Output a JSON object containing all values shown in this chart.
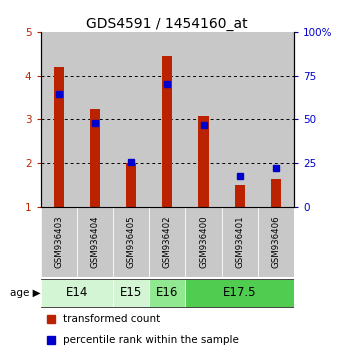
{
  "title": "GDS4591 / 1454160_at",
  "samples": [
    "GSM936403",
    "GSM936404",
    "GSM936405",
    "GSM936402",
    "GSM936400",
    "GSM936401",
    "GSM936406"
  ],
  "red_values": [
    4.2,
    3.25,
    2.0,
    4.45,
    3.07,
    1.5,
    1.65
  ],
  "blue_values": [
    3.58,
    2.93,
    2.02,
    3.82,
    2.87,
    1.72,
    1.9
  ],
  "ylim_left": [
    1,
    5
  ],
  "ylim_right": [
    0,
    100
  ],
  "yticks_left": [
    1,
    2,
    3,
    4,
    5
  ],
  "yticks_right": [
    0,
    25,
    50,
    75,
    100
  ],
  "ytick_labels_right": [
    "0",
    "25",
    "50",
    "75",
    "100%"
  ],
  "hgrid_at": [
    2,
    3,
    4
  ],
  "age_groups": [
    {
      "label": "E14",
      "span": [
        0,
        1
      ],
      "color": "#d4f5d4"
    },
    {
      "label": "E15",
      "span": [
        2,
        2
      ],
      "color": "#d4f5d4"
    },
    {
      "label": "E16",
      "span": [
        3,
        3
      ],
      "color": "#90e890"
    },
    {
      "label": "E17.5",
      "span": [
        4,
        6
      ],
      "color": "#50cc50"
    }
  ],
  "bar_color": "#bb2200",
  "marker_color": "#0000cc",
  "bg_color": "#c8c8c8",
  "bar_bottom": 1.0,
  "title_fontsize": 10,
  "tick_fontsize": 7.5,
  "sample_fontsize": 6.2,
  "legend_fontsize": 7.5,
  "age_fontsize": 8.5
}
